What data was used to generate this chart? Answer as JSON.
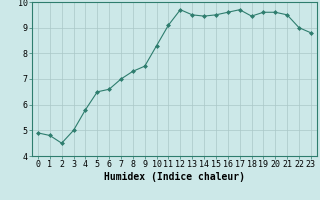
{
  "x": [
    0,
    1,
    2,
    3,
    4,
    5,
    6,
    7,
    8,
    9,
    10,
    11,
    12,
    13,
    14,
    15,
    16,
    17,
    18,
    19,
    20,
    21,
    22,
    23
  ],
  "y": [
    4.9,
    4.8,
    4.5,
    5.0,
    5.8,
    6.5,
    6.6,
    7.0,
    7.3,
    7.5,
    8.3,
    9.1,
    9.7,
    9.5,
    9.45,
    9.5,
    9.6,
    9.7,
    9.45,
    9.6,
    9.6,
    9.5,
    9.0,
    8.8
  ],
  "line_color": "#2e7d6e",
  "marker": "D",
  "marker_size": 2,
  "bg_color": "#cce8e8",
  "grid_color": "#aac8c8",
  "xlabel": "Humidex (Indice chaleur)",
  "xlabel_fontsize": 7,
  "tick_fontsize": 6,
  "ylim": [
    4,
    10
  ],
  "xlim": [
    -0.5,
    23.5
  ],
  "yticks": [
    4,
    5,
    6,
    7,
    8,
    9,
    10
  ],
  "xticks": [
    0,
    1,
    2,
    3,
    4,
    5,
    6,
    7,
    8,
    9,
    10,
    11,
    12,
    13,
    14,
    15,
    16,
    17,
    18,
    19,
    20,
    21,
    22,
    23
  ]
}
